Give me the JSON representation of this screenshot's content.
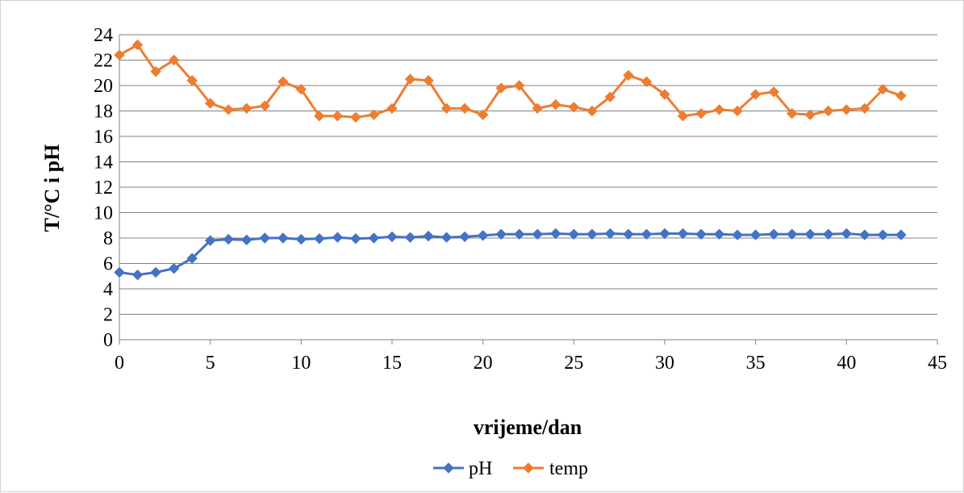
{
  "chart_data": {
    "type": "line",
    "title": "",
    "xlabel": "vrijeme/dan",
    "ylabel": "T/°C i pH",
    "xlim": [
      0,
      45
    ],
    "ylim": [
      0,
      24
    ],
    "x_ticks": [
      "0",
      "5",
      "10",
      "15",
      "20",
      "25",
      "30",
      "35",
      "40",
      "45"
    ],
    "y_ticks": [
      "0",
      "2",
      "4",
      "6",
      "8",
      "10",
      "12",
      "14",
      "16",
      "18",
      "20",
      "22",
      "24"
    ],
    "grid": "horizontal",
    "legend_position": "bottom",
    "x": [
      0,
      1,
      2,
      3,
      4,
      5,
      6,
      7,
      8,
      9,
      10,
      11,
      12,
      13,
      14,
      15,
      16,
      17,
      18,
      19,
      20,
      21,
      22,
      23,
      24,
      25,
      26,
      27,
      28,
      29,
      30,
      31,
      32,
      33,
      34,
      35,
      36,
      37,
      38,
      39,
      40,
      41,
      42,
      43
    ],
    "series": [
      {
        "name": "pH",
        "color": "#4472C4",
        "marker": "diamond",
        "values": [
          5.3,
          5.1,
          5.3,
          5.6,
          6.4,
          7.8,
          7.9,
          7.85,
          8.0,
          8.0,
          7.9,
          7.95,
          8.05,
          7.95,
          8.0,
          8.1,
          8.05,
          8.15,
          8.05,
          8.1,
          8.2,
          8.3,
          8.3,
          8.3,
          8.35,
          8.3,
          8.3,
          8.35,
          8.3,
          8.3,
          8.35,
          8.35,
          8.3,
          8.3,
          8.25,
          8.25,
          8.3,
          8.3,
          8.3,
          8.3,
          8.35,
          8.25,
          8.25,
          8.25
        ]
      },
      {
        "name": "temp",
        "color": "#ED7D31",
        "marker": "diamond",
        "values": [
          22.4,
          23.2,
          21.1,
          22.0,
          20.4,
          18.6,
          18.1,
          18.2,
          18.4,
          20.3,
          19.7,
          17.6,
          17.6,
          17.5,
          17.7,
          18.2,
          20.5,
          20.4,
          18.2,
          18.2,
          17.7,
          19.8,
          20.0,
          18.2,
          18.5,
          18.3,
          18.0,
          19.1,
          20.8,
          20.3,
          19.3,
          17.6,
          17.8,
          18.1,
          18.0,
          19.3,
          19.5,
          17.8,
          17.7,
          18.0,
          18.1,
          18.2,
          19.7,
          19.2
        ]
      }
    ]
  }
}
